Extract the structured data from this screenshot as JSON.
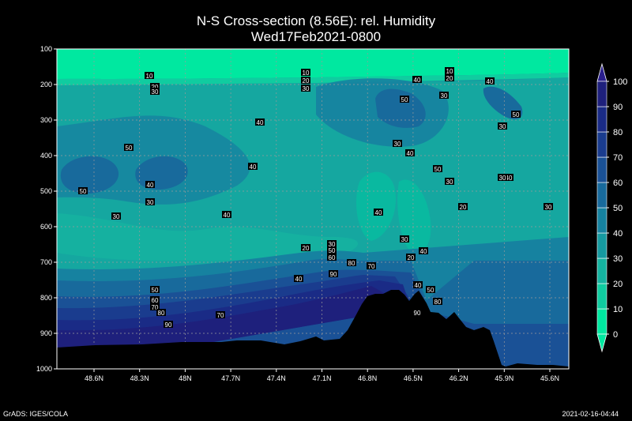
{
  "chart_data": {
    "type": "heatmap",
    "title": "N-S Cross-section (8.56E): rel. Humidity",
    "subtitle": "Wed17Feb2021-0800",
    "y_axis": {
      "ticks": [
        100,
        200,
        300,
        400,
        500,
        600,
        700,
        800,
        900,
        1000
      ],
      "range": [
        100,
        1000
      ],
      "reversed": true
    },
    "x_axis": {
      "ticks": [
        "48.6N",
        "48.3N",
        "48N",
        "47.7N",
        "47.4N",
        "47.1N",
        "46.8N",
        "46.5N",
        "46.2N",
        "45.9N",
        "45.6N"
      ]
    },
    "grid": true,
    "colorbar": {
      "ticks": [
        0,
        10,
        20,
        30,
        40,
        50,
        60,
        70,
        80,
        90,
        100
      ],
      "colors": [
        "#00e8a0",
        "#10cca0",
        "#15b3a0",
        "#169aa0",
        "#1682a0",
        "#186a9c",
        "#1a5196",
        "#1a3c8e",
        "#1a2b86",
        "#1e207c"
      ],
      "placement": "right"
    },
    "contour_labels": [
      "10",
      "20",
      "30",
      "10",
      "20",
      "30",
      "40",
      "50",
      "10",
      "20",
      "30",
      "40",
      "50",
      "40",
      "30",
      "40",
      "30",
      "40",
      "40",
      "50",
      "30",
      "40",
      "50",
      "30",
      "30",
      "40",
      "40",
      "20",
      "30",
      "40",
      "20",
      "30",
      "20",
      "40",
      "30",
      "50",
      "60",
      "80",
      "90",
      "70",
      "40",
      "50",
      "60",
      "70",
      "80",
      "90",
      "70",
      "40",
      "50",
      "80",
      "90",
      "30",
      "30",
      "40",
      "50"
    ]
  },
  "footer": {
    "left": "GrADS: IGES/COLA",
    "right": "2021-02-16-04:44"
  }
}
